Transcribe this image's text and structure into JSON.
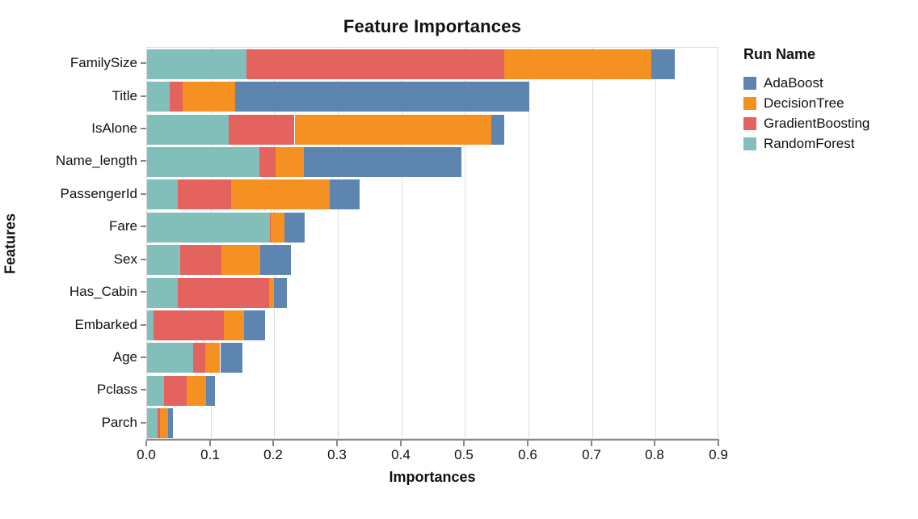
{
  "legend": {
    "title": "Run Name",
    "items": [
      {
        "label": "AdaBoost",
        "color": "#5e84b0"
      },
      {
        "label": "DecisionTree",
        "color": "#f59122"
      },
      {
        "label": "GradientBoosting",
        "color": "#e5635e"
      },
      {
        "label": "RandomForest",
        "color": "#83bfba"
      }
    ]
  },
  "chart_data": {
    "type": "bar",
    "orientation": "horizontal",
    "stacked": true,
    "title": "Feature Importances",
    "xlabel": "Importances",
    "ylabel": "Features",
    "xlim": [
      0,
      0.9
    ],
    "x_ticks": [
      "0.0",
      "0.1",
      "0.2",
      "0.3",
      "0.4",
      "0.5",
      "0.6",
      "0.7",
      "0.8",
      "0.9"
    ],
    "grid": true,
    "legend_position": "right",
    "categories": [
      "FamilySize",
      "Title",
      "IsAlone",
      "Name_length",
      "PassengerId",
      "Fare",
      "Sex",
      "Has_Cabin",
      "Embarked",
      "Age",
      "Pclass",
      "Parch"
    ],
    "series": [
      {
        "name": "RandomForest",
        "color": "#83bfba",
        "values": [
          0.156,
          0.036,
          0.128,
          0.177,
          0.048,
          0.193,
          0.052,
          0.048,
          0.01,
          0.072,
          0.027,
          0.017
        ]
      },
      {
        "name": "GradientBoosting",
        "color": "#e5635e",
        "values": [
          0.406,
          0.02,
          0.104,
          0.025,
          0.084,
          0.002,
          0.065,
          0.144,
          0.111,
          0.02,
          0.035,
          0.003
        ]
      },
      {
        "name": "DecisionTree",
        "color": "#f59122",
        "values": [
          0.231,
          0.083,
          0.31,
          0.045,
          0.155,
          0.021,
          0.061,
          0.008,
          0.031,
          0.023,
          0.031,
          0.013
        ]
      },
      {
        "name": "AdaBoost",
        "color": "#5e84b0",
        "values": [
          0.037,
          0.463,
          0.02,
          0.247,
          0.047,
          0.032,
          0.048,
          0.02,
          0.034,
          0.035,
          0.014,
          0.008
        ]
      }
    ]
  }
}
